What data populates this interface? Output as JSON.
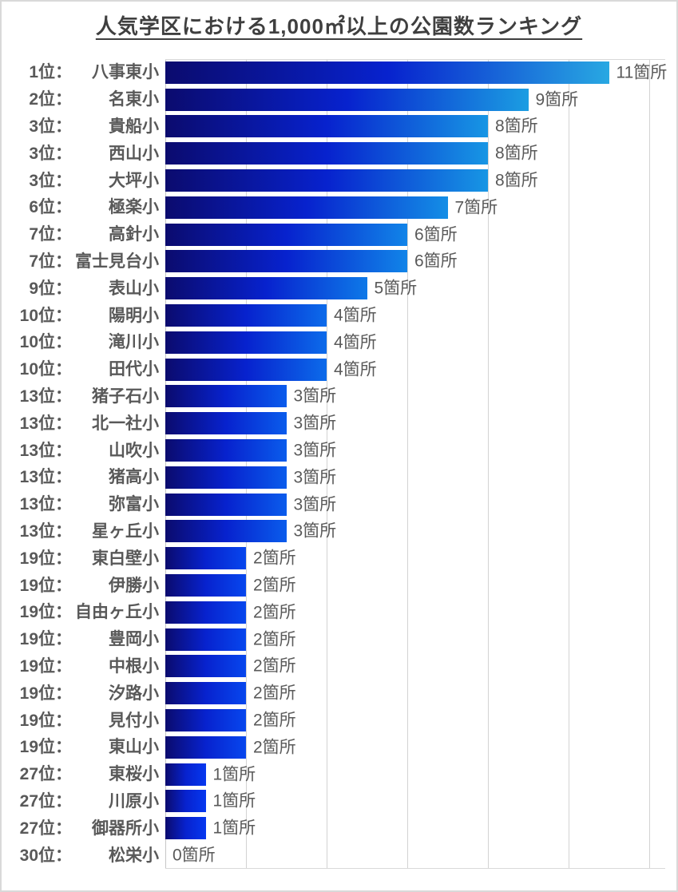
{
  "title": "人気学区における1,000㎡以上の公園数ランキング",
  "chart_data": {
    "type": "bar",
    "orientation": "horizontal",
    "title": "人気学区における1,000㎡以上の公園数ランキング",
    "xlabel": "",
    "ylabel": "",
    "xlim": [
      0,
      12
    ],
    "gridline_interval": 2,
    "grid": true,
    "unit_suffix": "箇所",
    "bar_colors": {
      "start": "#0B0B6E",
      "mid": "#0722CE"
    },
    "rows": [
      {
        "rank_label": "1位：",
        "name": "八事東小",
        "value": 11,
        "value_label": "11箇所",
        "end_color": "#28A8E2"
      },
      {
        "rank_label": "2位：",
        "name": "名東小",
        "value": 9,
        "value_label": "9箇所",
        "end_color": "#1B9DE2"
      },
      {
        "rank_label": "3位：",
        "name": "貴船小",
        "value": 8,
        "value_label": "8箇所",
        "end_color": "#1796E4"
      },
      {
        "rank_label": "3位：",
        "name": "西山小",
        "value": 8,
        "value_label": "8箇所",
        "end_color": "#1796E4"
      },
      {
        "rank_label": "3位：",
        "name": "大坪小",
        "value": 8,
        "value_label": "8箇所",
        "end_color": "#1796E4"
      },
      {
        "rank_label": "6位：",
        "name": "極楽小",
        "value": 7,
        "value_label": "7箇所",
        "end_color": "#148EE6"
      },
      {
        "rank_label": "7位：",
        "name": "高針小",
        "value": 6,
        "value_label": "6箇所",
        "end_color": "#1184E8"
      },
      {
        "rank_label": "7位：",
        "name": "富士見台小",
        "value": 6,
        "value_label": "6箇所",
        "end_color": "#1184E8"
      },
      {
        "rank_label": "9位：",
        "name": "表山小",
        "value": 5,
        "value_label": "5箇所",
        "end_color": "#0E79E8"
      },
      {
        "rank_label": "10位：",
        "name": "陽明小",
        "value": 4,
        "value_label": "4箇所",
        "end_color": "#0C6BEA"
      },
      {
        "rank_label": "10位：",
        "name": "滝川小",
        "value": 4,
        "value_label": "4箇所",
        "end_color": "#0C6BEA"
      },
      {
        "rank_label": "10位：",
        "name": "田代小",
        "value": 4,
        "value_label": "4箇所",
        "end_color": "#0C6BEA"
      },
      {
        "rank_label": "13位：",
        "name": "猪子石小",
        "value": 3,
        "value_label": "3箇所",
        "end_color": "#0A5CEC"
      },
      {
        "rank_label": "13位：",
        "name": "北一社小",
        "value": 3,
        "value_label": "3箇所",
        "end_color": "#0A5CEC"
      },
      {
        "rank_label": "13位：",
        "name": "山吹小",
        "value": 3,
        "value_label": "3箇所",
        "end_color": "#0A5CEC"
      },
      {
        "rank_label": "13位：",
        "name": "猪高小",
        "value": 3,
        "value_label": "3箇所",
        "end_color": "#0A5CEC"
      },
      {
        "rank_label": "13位：",
        "name": "弥富小",
        "value": 3,
        "value_label": "3箇所",
        "end_color": "#0A5CEC"
      },
      {
        "rank_label": "13位：",
        "name": "星ヶ丘小",
        "value": 3,
        "value_label": "3箇所",
        "end_color": "#0A5CEC"
      },
      {
        "rank_label": "19位：",
        "name": "東白壁小",
        "value": 2,
        "value_label": "2箇所",
        "end_color": "#0747EE"
      },
      {
        "rank_label": "19位：",
        "name": "伊勝小",
        "value": 2,
        "value_label": "2箇所",
        "end_color": "#0747EE"
      },
      {
        "rank_label": "19位：",
        "name": "自由ヶ丘小",
        "value": 2,
        "value_label": "2箇所",
        "end_color": "#0747EE"
      },
      {
        "rank_label": "19位：",
        "name": "豊岡小",
        "value": 2,
        "value_label": "2箇所",
        "end_color": "#0747EE"
      },
      {
        "rank_label": "19位：",
        "name": "中根小",
        "value": 2,
        "value_label": "2箇所",
        "end_color": "#0747EE"
      },
      {
        "rank_label": "19位：",
        "name": "汐路小",
        "value": 2,
        "value_label": "2箇所",
        "end_color": "#0747EE"
      },
      {
        "rank_label": "19位：",
        "name": "見付小",
        "value": 2,
        "value_label": "2箇所",
        "end_color": "#0747EE"
      },
      {
        "rank_label": "19位：",
        "name": "東山小",
        "value": 2,
        "value_label": "2箇所",
        "end_color": "#0747EE"
      },
      {
        "rank_label": "27位：",
        "name": "東桜小",
        "value": 1,
        "value_label": "1箇所",
        "end_color": "#0638F0"
      },
      {
        "rank_label": "27位：",
        "name": "川原小",
        "value": 1,
        "value_label": "1箇所",
        "end_color": "#0638F0"
      },
      {
        "rank_label": "27位：",
        "name": "御器所小",
        "value": 1,
        "value_label": "1箇所",
        "end_color": "#0638F0"
      },
      {
        "rank_label": "30位：",
        "name": "松栄小",
        "value": 0,
        "value_label": "0箇所",
        "end_color": "#0638F0"
      }
    ]
  }
}
